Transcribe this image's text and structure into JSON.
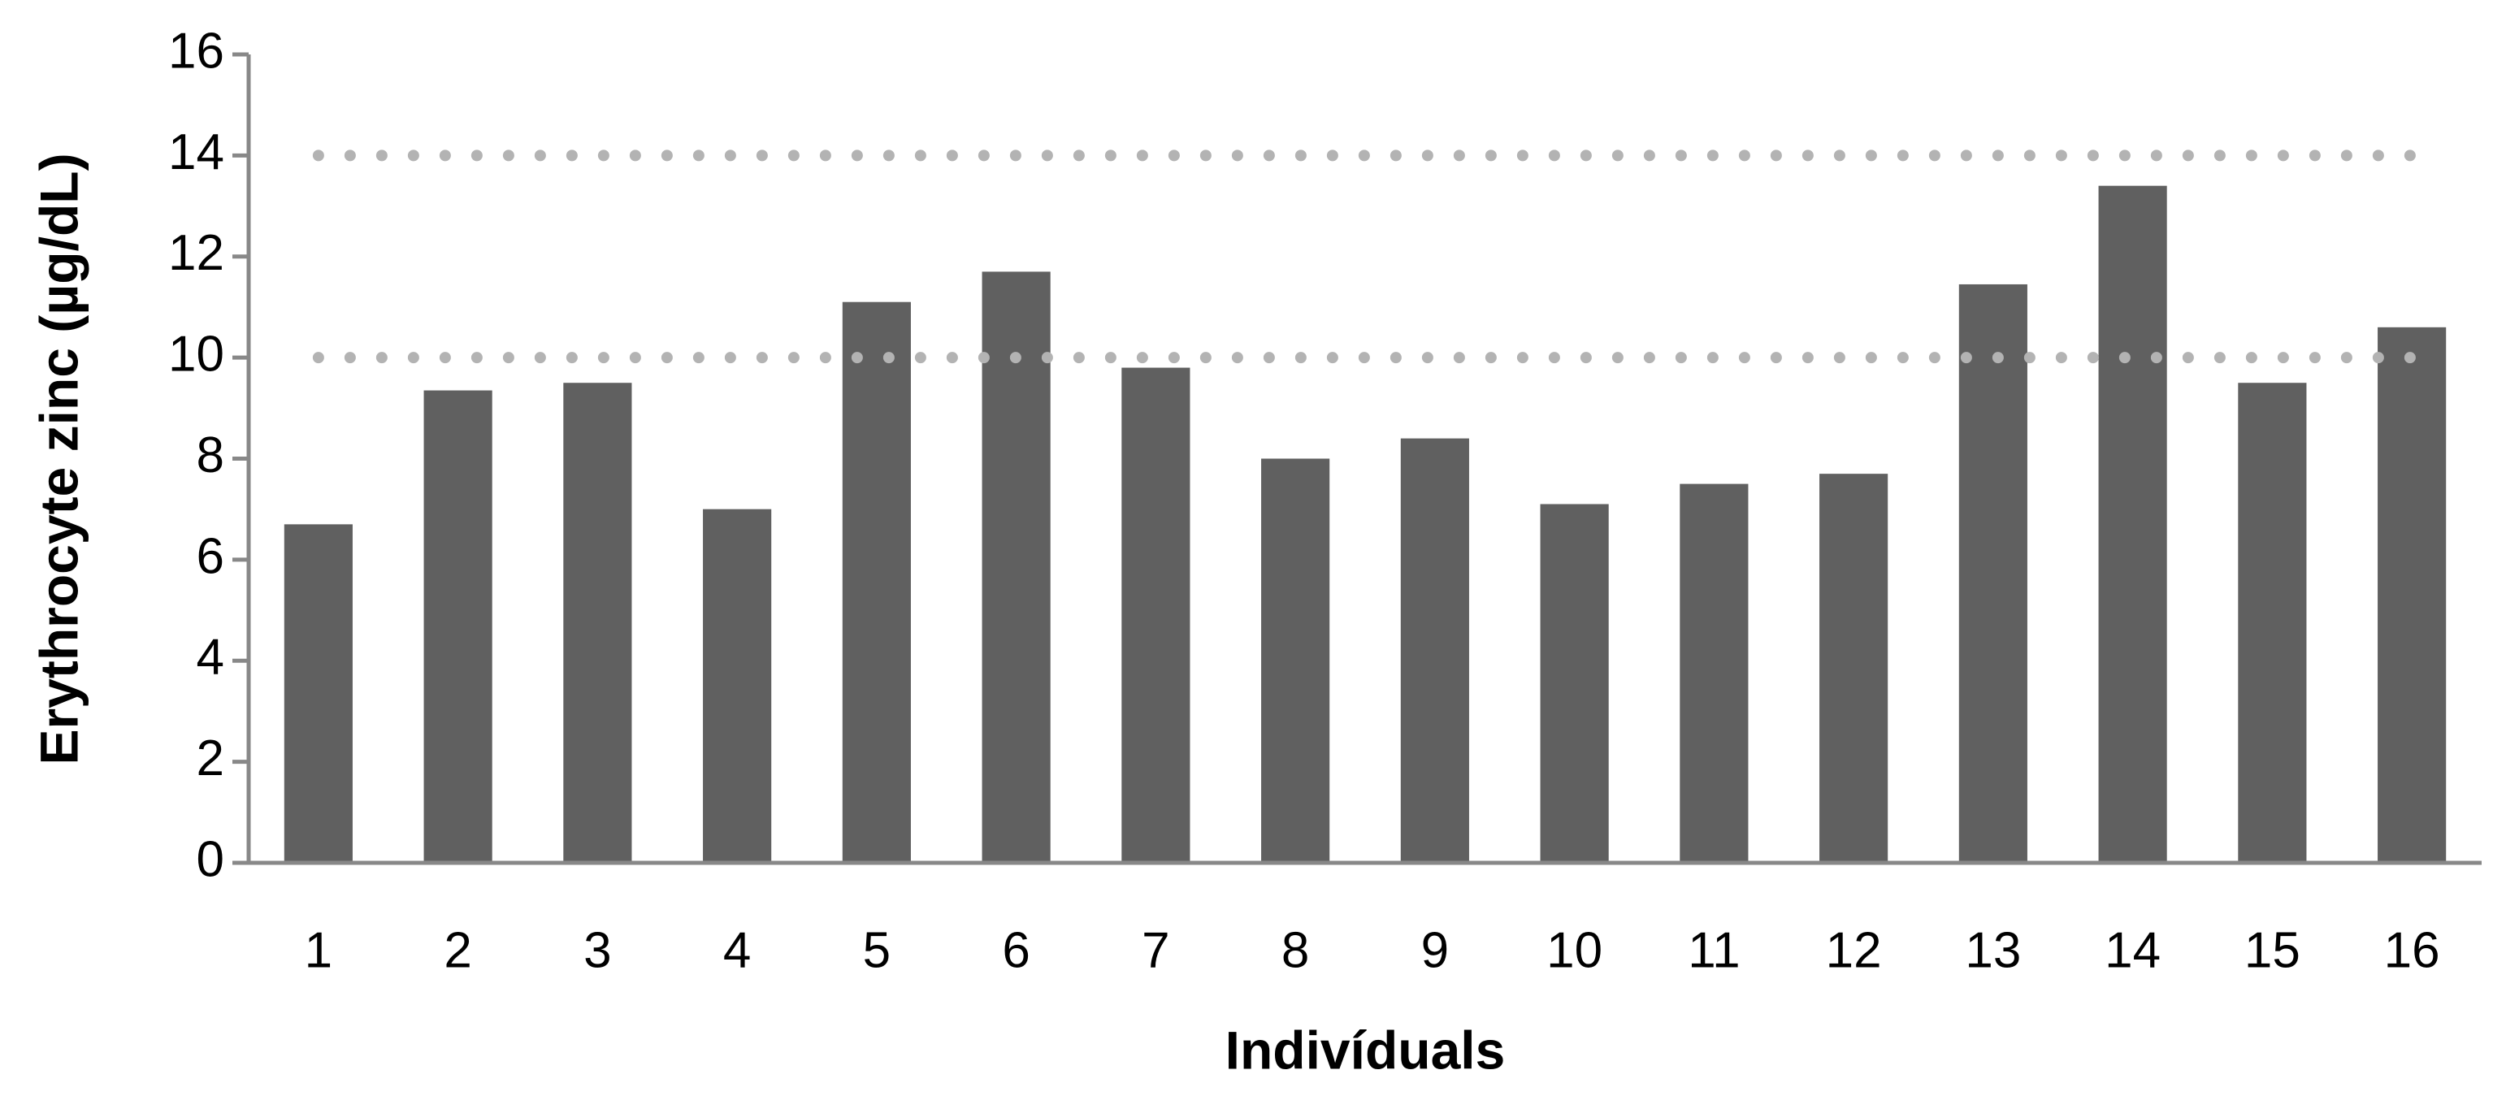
{
  "chart_data": {
    "type": "bar",
    "x_label": "Indivíduals",
    "y_label": "Erythrocyte zinc (µg/dL)",
    "categories": [
      "1",
      "2",
      "3",
      "4",
      "5",
      "6",
      "7",
      "8",
      "9",
      "10",
      "11",
      "12",
      "13",
      "14",
      "15",
      "16"
    ],
    "values": [
      6.7,
      9.35,
      9.5,
      7.0,
      11.1,
      11.7,
      9.8,
      8.0,
      8.4,
      7.1,
      7.5,
      7.7,
      11.45,
      13.4,
      9.5,
      10.6
    ],
    "color": "#606060",
    "reference_lines": [
      10,
      14
    ],
    "reference_color": "#b3b3b3",
    "ylim": [
      0,
      16
    ],
    "yticks": [
      0,
      2,
      4,
      6,
      8,
      10,
      12,
      14,
      16
    ],
    "grid": false
  }
}
